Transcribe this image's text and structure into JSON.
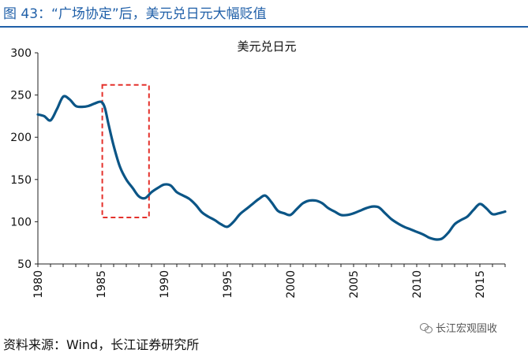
{
  "header": {
    "title": "图 43：“广场协定”后，美元兑日元大幅贬值"
  },
  "footer": {
    "source": "资料来源：Wind，长江证券研究所",
    "watermark": "长江宏观固收"
  },
  "colors": {
    "title": "#1f5fa8",
    "line": "#0b5586",
    "highlight": "#e4312b"
  },
  "icons": {
    "watermark": "wechat-icon"
  },
  "chart_data": {
    "type": "line",
    "title": "美元兑日元",
    "xlabel": "",
    "ylabel": "",
    "xlim": [
      1980,
      2017
    ],
    "ylim": [
      50,
      300
    ],
    "yticks": [
      50,
      100,
      150,
      200,
      250,
      300
    ],
    "xticks": [
      1980,
      1985,
      1990,
      1995,
      2000,
      2005,
      2010,
      2015
    ],
    "grid": false,
    "legend": "none",
    "highlight_box": {
      "x_from": 1985.1,
      "x_to": 1988.8,
      "y_from": 105,
      "y_to": 262
    },
    "series": [
      {
        "name": "美元兑日元",
        "x": [
          1980,
          1980.5,
          1981,
          1981.5,
          1982,
          1982.5,
          1983,
          1983.5,
          1984,
          1984.5,
          1985,
          1985.3,
          1985.6,
          1986,
          1986.5,
          1987,
          1987.5,
          1988,
          1988.5,
          1989,
          1989.5,
          1990,
          1990.5,
          1991,
          1991.5,
          1992,
          1992.5,
          1993,
          1993.5,
          1994,
          1994.5,
          1995,
          1995.5,
          1996,
          1996.5,
          1997,
          1997.5,
          1998,
          1998.5,
          1999,
          1999.5,
          2000,
          2000.5,
          2001,
          2001.5,
          2002,
          2002.5,
          2003,
          2003.5,
          2004,
          2004.5,
          2005,
          2005.5,
          2006,
          2006.5,
          2007,
          2007.5,
          2008,
          2008.5,
          2009,
          2009.5,
          2010,
          2010.5,
          2011,
          2011.5,
          2012,
          2012.5,
          2013,
          2013.5,
          2014,
          2014.5,
          2015,
          2015.5,
          2016,
          2016.5,
          2017
        ],
        "values": [
          227,
          225,
          220,
          233,
          248,
          245,
          237,
          236,
          237,
          240,
          242,
          235,
          215,
          190,
          165,
          150,
          140,
          130,
          128,
          135,
          140,
          144,
          143,
          135,
          131,
          127,
          120,
          111,
          106,
          102,
          97,
          94,
          100,
          109,
          115,
          121,
          127,
          131,
          123,
          113,
          110,
          108,
          115,
          122,
          125,
          125,
          122,
          116,
          112,
          108,
          108,
          110,
          113,
          116,
          118,
          117,
          110,
          103,
          98,
          94,
          91,
          88,
          85,
          81,
          79,
          80,
          87,
          97,
          102,
          106,
          114,
          121,
          116,
          109,
          110,
          112
        ]
      }
    ]
  }
}
